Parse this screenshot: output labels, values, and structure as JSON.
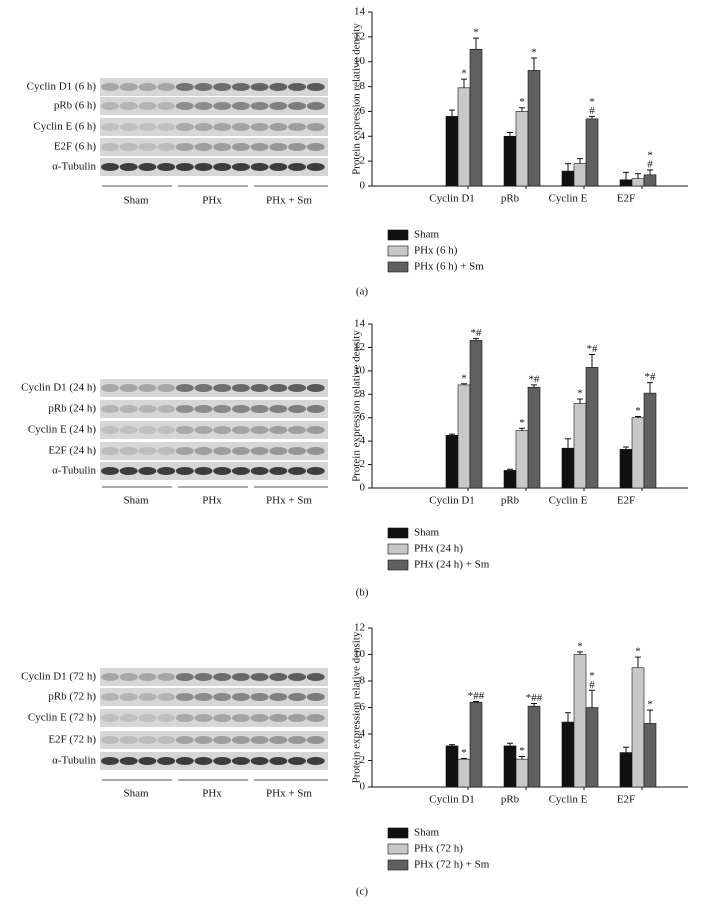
{
  "chart_data": [
    {
      "type": "bar",
      "ylabel": "Protein expression relative density",
      "categories": [
        "Cyclin D1",
        "pRb",
        "Cyclin E",
        "E2F"
      ],
      "ylim": [
        0,
        14
      ],
      "yticks": [
        0,
        2,
        4,
        6,
        8,
        10,
        12,
        14
      ],
      "series": [
        {
          "name": "Sham",
          "color": "#111111",
          "values": [
            5.6,
            4.0,
            1.2,
            0.5
          ],
          "errors": [
            0.5,
            0.3,
            0.6,
            0.6
          ]
        },
        {
          "name": "PHx (6 h)",
          "color": "#c8c8c8",
          "values": [
            7.9,
            6.0,
            1.8,
            0.6
          ],
          "errors": [
            0.7,
            0.3,
            0.4,
            0.4
          ],
          "annotations": [
            [
              "*"
            ],
            [
              "*"
            ],
            null,
            null
          ]
        },
        {
          "name": "PHx (6 h) + Sm",
          "color": "#606060",
          "values": [
            11.0,
            9.3,
            5.4,
            0.9
          ],
          "errors": [
            0.9,
            1.0,
            0.2,
            0.4
          ],
          "annotations": [
            [
              "*"
            ],
            [
              "*"
            ],
            [
              "*",
              "#"
            ],
            [
              "*",
              "#"
            ]
          ]
        }
      ],
      "legend": "below"
    },
    {
      "type": "bar",
      "ylabel": "Protein expression relative density",
      "categories": [
        "Cyclin D1",
        "pRb",
        "Cyclin E",
        "E2F"
      ],
      "ylim": [
        0,
        14
      ],
      "yticks": [
        0,
        2,
        4,
        6,
        8,
        10,
        12,
        14
      ],
      "series": [
        {
          "name": "Sham",
          "color": "#111111",
          "values": [
            4.5,
            1.5,
            3.4,
            3.3
          ],
          "errors": [
            0.1,
            0.1,
            0.8,
            0.2
          ]
        },
        {
          "name": "PHx (24 h)",
          "color": "#c8c8c8",
          "values": [
            8.8,
            4.9,
            7.2,
            6.0
          ],
          "errors": [
            0.1,
            0.2,
            0.4,
            0.1
          ],
          "annotations": [
            [
              "*"
            ],
            [
              "*"
            ],
            [
              "*"
            ],
            [
              "*"
            ]
          ]
        },
        {
          "name": "PHx (24 h) + Sm",
          "color": "#606060",
          "values": [
            12.6,
            8.6,
            10.3,
            8.1
          ],
          "errors": [
            0.15,
            0.2,
            1.1,
            0.9
          ],
          "annotations": [
            [
              "*#"
            ],
            [
              "*#"
            ],
            [
              "*#"
            ],
            [
              "*#"
            ]
          ]
        }
      ],
      "legend": "below"
    },
    {
      "type": "bar",
      "ylabel": "Protein expression relative density",
      "categories": [
        "Cyclin D1",
        "pRb",
        "Cyclin E",
        "E2F"
      ],
      "ylim": [
        0,
        12
      ],
      "yticks": [
        0,
        2,
        4,
        6,
        8,
        10,
        12
      ],
      "series": [
        {
          "name": "Sham",
          "color": "#111111",
          "values": [
            3.1,
            3.1,
            4.9,
            2.6
          ],
          "errors": [
            0.1,
            0.2,
            0.7,
            0.4
          ]
        },
        {
          "name": "PHx (72 h)",
          "color": "#c8c8c8",
          "values": [
            2.1,
            2.1,
            10.0,
            9.0
          ],
          "errors": [
            0.05,
            0.2,
            0.2,
            0.8
          ],
          "annotations": [
            [
              "*"
            ],
            [
              "*"
            ],
            [
              "*"
            ],
            [
              "*"
            ]
          ]
        },
        {
          "name": "PHx (72 h) + Sm",
          "color": "#606060",
          "values": [
            6.4,
            6.1,
            6.0,
            4.8
          ],
          "errors": [
            0.05,
            0.2,
            1.3,
            1.0
          ],
          "annotations": [
            [
              "*##"
            ],
            [
              "*##"
            ],
            [
              "*",
              "#"
            ],
            [
              "*"
            ]
          ]
        }
      ],
      "legend": "below"
    }
  ],
  "blots": [
    {
      "rows": [
        "Cyclin D1 (6 h)",
        "pRb (6 h)",
        "Cyclin E (6 h)",
        "E2F (6 h)",
        "α-Tubulin"
      ],
      "groups": [
        "Sham",
        "PHx",
        "PHx + Sm"
      ]
    },
    {
      "rows": [
        "Cyclin D1 (24 h)",
        "pRb (24 h)",
        "Cyclin E (24 h)",
        "E2F (24 h)",
        "α-Tubulin"
      ],
      "groups": [
        "Sham",
        "PHx",
        "PHx + Sm"
      ]
    },
    {
      "rows": [
        "Cyclin D1 (72 h)",
        "pRb (72 h)",
        "Cyclin E (72 h)",
        "E2F (72 h)",
        "α-Tubulin"
      ],
      "groups": [
        "Sham",
        "PHx",
        "PHx + Sm"
      ]
    }
  ],
  "panel_labels": [
    "(a)",
    "(b)",
    "(c)"
  ]
}
